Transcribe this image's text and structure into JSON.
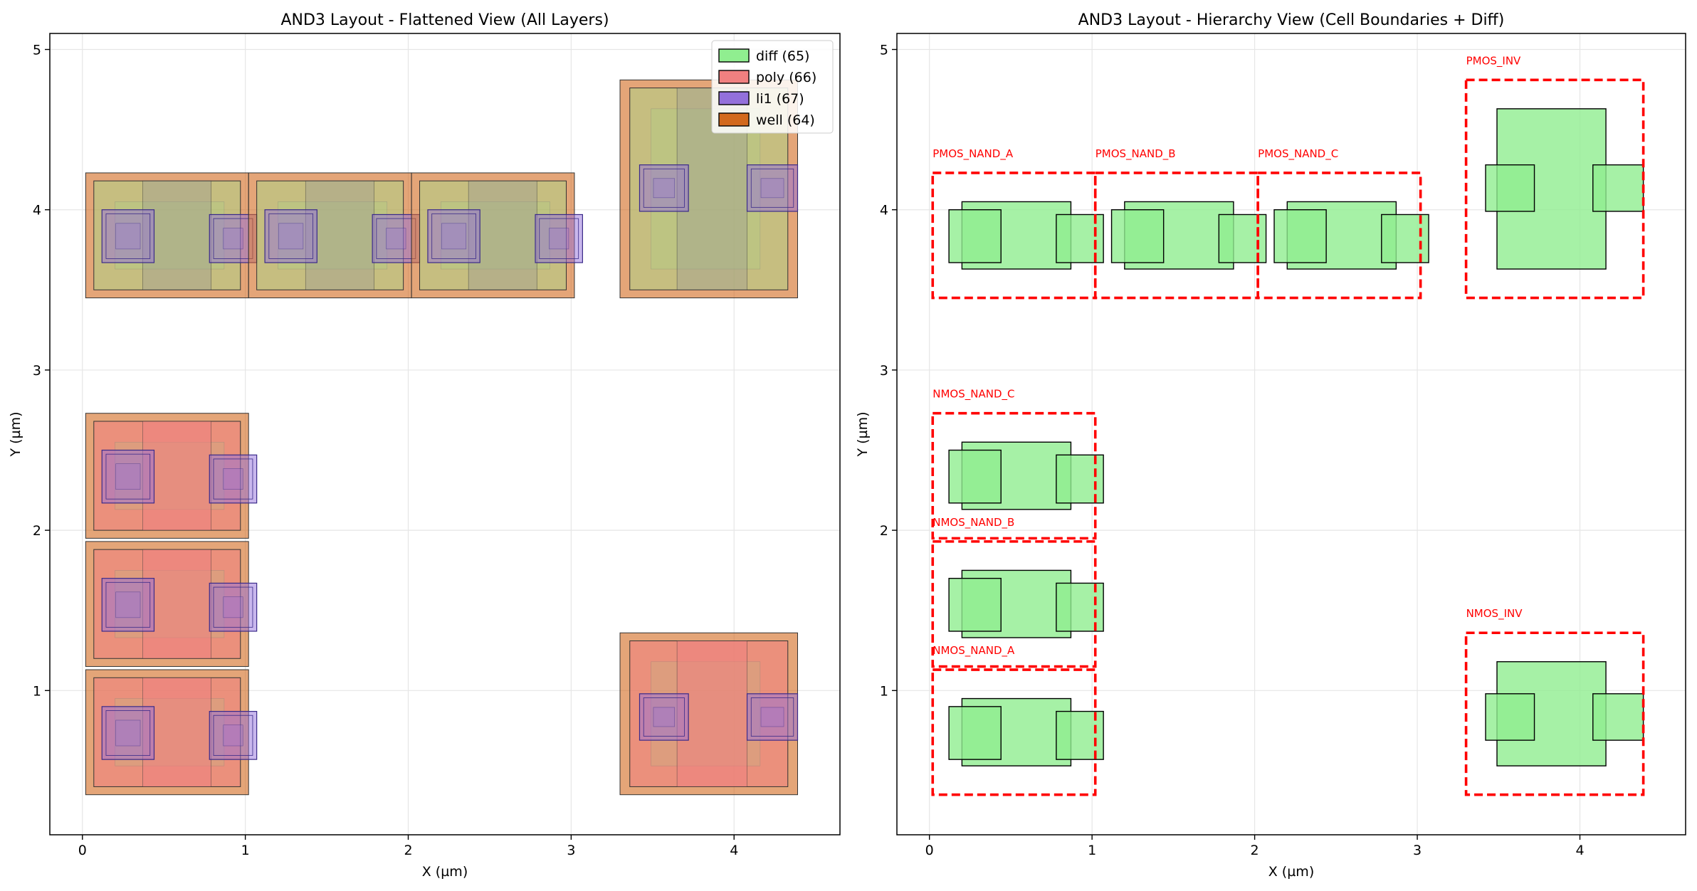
{
  "colors": {
    "diff": "#90ee90",
    "poly": "#f08080",
    "li1": "#9370db",
    "well": "#d2691e",
    "cell_boundary": "#ff0000",
    "grid": "#e6e6e6"
  },
  "chart_data": [
    {
      "type": "layout",
      "title": "AND3 Layout - Flattened View (All Layers)",
      "xlabel": "X (µm)",
      "ylabel": "Y (µm)",
      "xlim": [
        -0.2,
        4.65
      ],
      "ylim": [
        0.1,
        5.1
      ],
      "xticks": [
        "0",
        "1",
        "2",
        "3",
        "4"
      ],
      "yticks": [
        "1",
        "2",
        "3",
        "4",
        "5"
      ],
      "grid": true,
      "legend_position": "top-right",
      "legend": [
        {
          "label": "diff (65)",
          "layer": "diff"
        },
        {
          "label": "poly (66)",
          "layer": "poly"
        },
        {
          "label": "li1 (67)",
          "layer": "li1"
        },
        {
          "label": "well (64)",
          "layer": "well"
        }
      ],
      "cells": [
        {
          "name": "PMOS_NAND_A",
          "ox": 0.0,
          "oy": 3.45,
          "type": "pmos"
        },
        {
          "name": "PMOS_NAND_B",
          "ox": 1.0,
          "oy": 3.45,
          "type": "pmos"
        },
        {
          "name": "PMOS_NAND_C",
          "ox": 2.0,
          "oy": 3.45,
          "type": "pmos"
        },
        {
          "name": "NMOS_NAND_C",
          "ox": 0.0,
          "oy": 1.95,
          "type": "nmos"
        },
        {
          "name": "NMOS_NAND_B",
          "ox": 0.0,
          "oy": 1.15,
          "type": "nmos"
        },
        {
          "name": "NMOS_NAND_A",
          "ox": 0.0,
          "oy": 0.35,
          "type": "nmos"
        },
        {
          "name": "PMOS_INV",
          "ox": 3.3,
          "oy": 3.45,
          "type": "pmos_big"
        },
        {
          "name": "NMOS_INV",
          "ox": 3.3,
          "oy": 0.35,
          "type": "nmos_big"
        }
      ]
    },
    {
      "type": "layout",
      "title": "AND3 Layout - Hierarchy View (Cell Boundaries + Diff)",
      "xlabel": "X (µm)",
      "ylabel": "Y (µm)",
      "xlim": [
        -0.2,
        4.65
      ],
      "ylim": [
        0.1,
        5.1
      ],
      "xticks": [
        "0",
        "1",
        "2",
        "3",
        "4"
      ],
      "yticks": [
        "1",
        "2",
        "3",
        "4",
        "5"
      ],
      "grid": true,
      "cells": [
        {
          "name": "PMOS_NAND_A",
          "ox": 0.0,
          "oy": 3.45,
          "type": "pmos"
        },
        {
          "name": "PMOS_NAND_B",
          "ox": 1.0,
          "oy": 3.45,
          "type": "pmos"
        },
        {
          "name": "PMOS_NAND_C",
          "ox": 2.0,
          "oy": 3.45,
          "type": "pmos"
        },
        {
          "name": "NMOS_NAND_C",
          "ox": 0.0,
          "oy": 1.95,
          "type": "nmos"
        },
        {
          "name": "NMOS_NAND_B",
          "ox": 0.0,
          "oy": 1.15,
          "type": "nmos"
        },
        {
          "name": "NMOS_NAND_A",
          "ox": 0.0,
          "oy": 0.35,
          "type": "nmos"
        },
        {
          "name": "PMOS_INV",
          "ox": 3.3,
          "oy": 3.45,
          "type": "pmos_big"
        },
        {
          "name": "NMOS_INV",
          "ox": 3.3,
          "oy": 0.35,
          "type": "nmos_big"
        }
      ]
    }
  ]
}
